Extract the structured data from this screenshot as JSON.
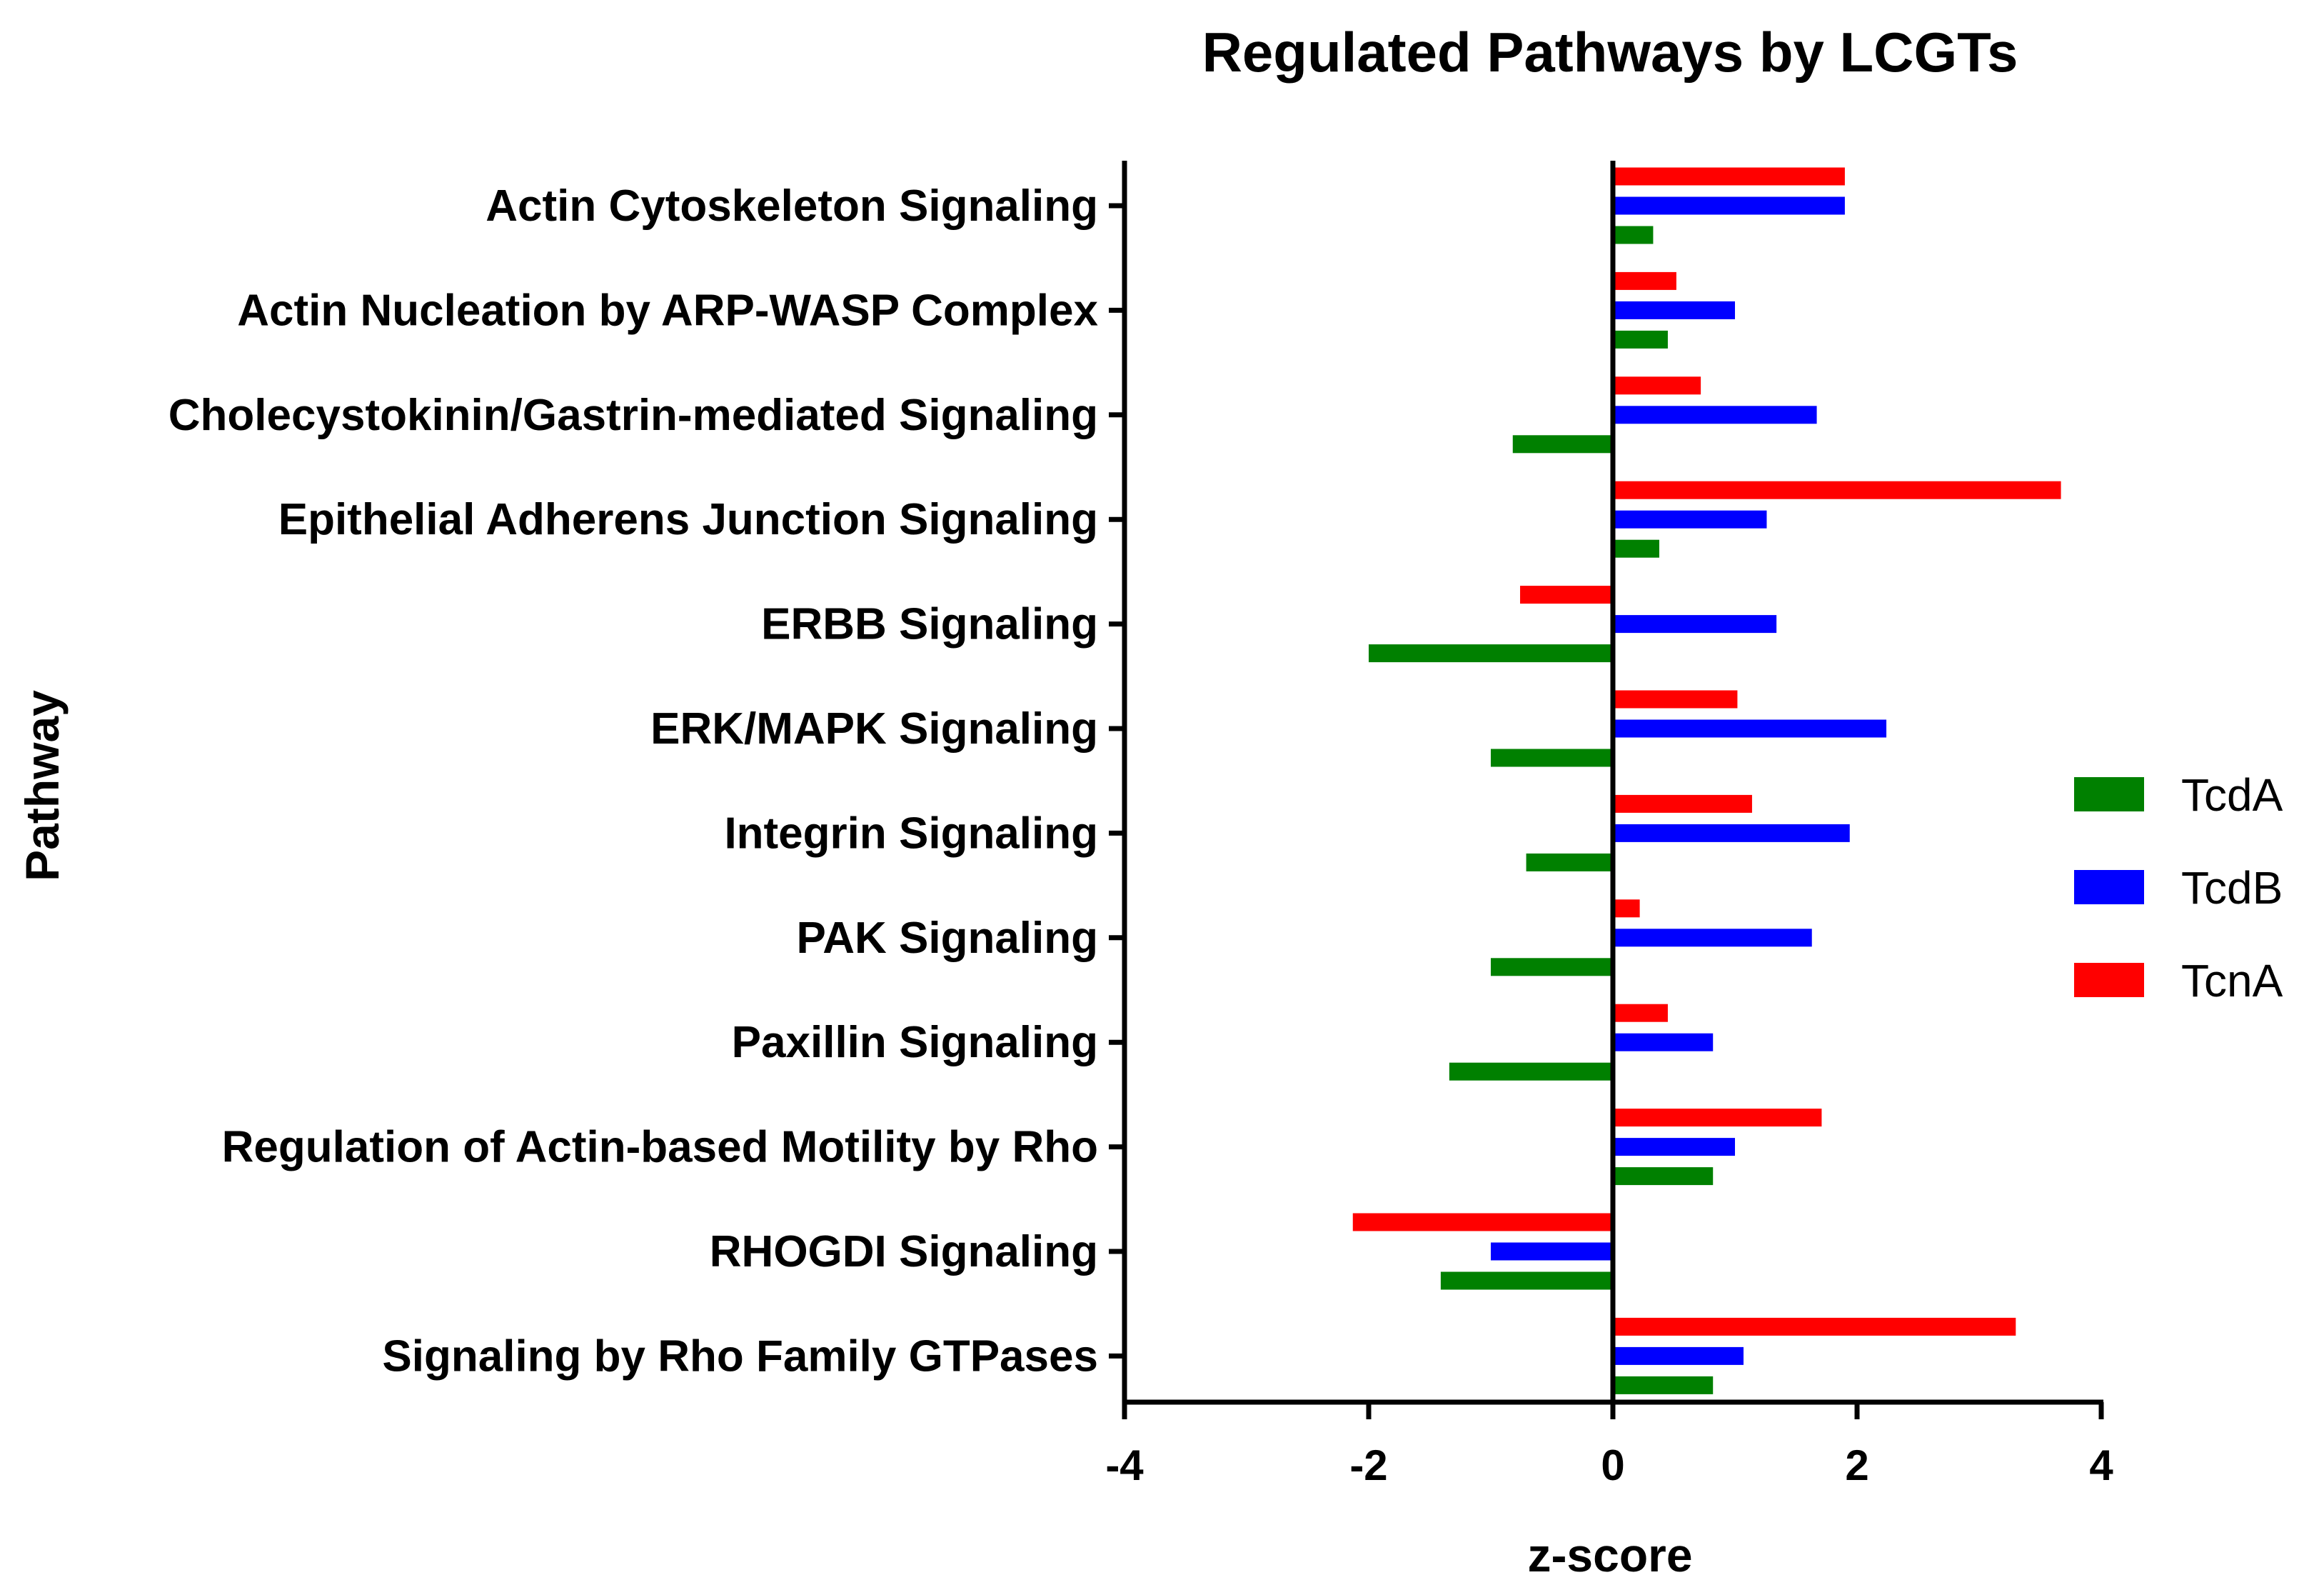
{
  "chart_data": {
    "type": "bar",
    "orientation": "horizontal",
    "title": "Regulated Pathways by LCGTs",
    "xlabel": "z-score",
    "ylabel": "Pathway",
    "xlim": [
      -4,
      4
    ],
    "xticks": [
      "-4",
      "-2",
      "0",
      "2",
      "4"
    ],
    "xtick_values": [
      -4,
      -2,
      0,
      2,
      4
    ],
    "grid": false,
    "legend_position": "right",
    "categories": [
      "Actin Cytoskeleton Signaling",
      "Actin Nucleation by ARP-WASP Complex",
      "Cholecystokinin/Gastrin-mediated Signaling",
      "Epithelial Adherens Junction Signaling",
      "ERBB Signaling",
      "ERK/MAPK Signaling",
      "Integrin Signaling",
      "PAK Signaling",
      "Paxillin Signaling",
      "Regulation of Actin-based Motility by Rho",
      "RHOGDI Signaling",
      "Signaling by Rho Family GTPases"
    ],
    "series": [
      {
        "name": "TcnA",
        "color": "#ff0000",
        "values": [
          1.9,
          0.52,
          0.72,
          3.67,
          -0.76,
          1.02,
          1.14,
          0.22,
          0.45,
          1.71,
          -2.13,
          3.3
        ]
      },
      {
        "name": "TcdB",
        "color": "#0000ff",
        "values": [
          1.9,
          1.0,
          1.67,
          1.26,
          1.34,
          2.24,
          1.94,
          1.63,
          0.82,
          1.0,
          -1.0,
          1.07
        ]
      },
      {
        "name": "TcdA",
        "color": "#008000",
        "values": [
          0.33,
          0.45,
          -0.82,
          0.38,
          -2.0,
          -1.0,
          -0.71,
          -1.0,
          -1.34,
          0.82,
          -1.41,
          0.82
        ]
      }
    ],
    "legend_order": [
      "TcdA",
      "TcdB",
      "TcnA"
    ]
  }
}
